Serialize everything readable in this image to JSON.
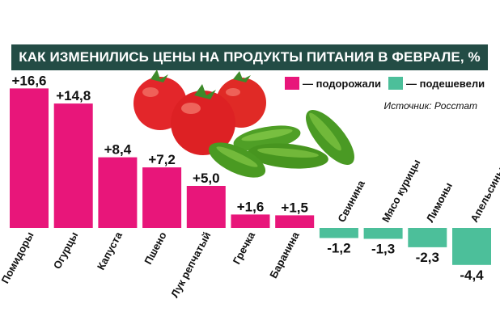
{
  "title": "КАК ИЗМЕНИЛИСЬ ЦЕНЫ НА ПРОДУКТЫ ПИТАНИЯ В ФЕВРАЛЕ, %",
  "legend": [
    {
      "label": "— подорожали",
      "color": "#e8167a"
    },
    {
      "label": "— подешевели",
      "color": "#4cbf9a"
    }
  ],
  "source": "Источник: Росстат",
  "colors": {
    "positive": "#e8167a",
    "negative": "#4cbf9a",
    "title_bg": "#234c45"
  },
  "chart_data": {
    "type": "bar",
    "title": "КАК ИЗМЕНИЛИСЬ ЦЕНЫ НА ПРОДУКТЫ ПИТАНИЯ В ФЕВРАЛЕ, %",
    "categories": [
      "Помидоры",
      "Огурцы",
      "Капуста",
      "Пшено",
      "Лук репчатый",
      "Гречка",
      "Баранина",
      "Свинина",
      "Мясо курицы",
      "Лимоны",
      "Апельсины"
    ],
    "values": [
      16.6,
      14.8,
      8.4,
      7.2,
      5.0,
      1.6,
      1.5,
      -1.2,
      -1.3,
      -2.3,
      -4.4
    ],
    "value_labels": [
      "+16,6",
      "+14,8",
      "+8,4",
      "+7,2",
      "+5,0",
      "+1,6",
      "+1,5",
      "-1,2",
      "-1,3",
      "-2,3",
      "-4,4"
    ],
    "grid": false,
    "legend_position": "top-right"
  }
}
